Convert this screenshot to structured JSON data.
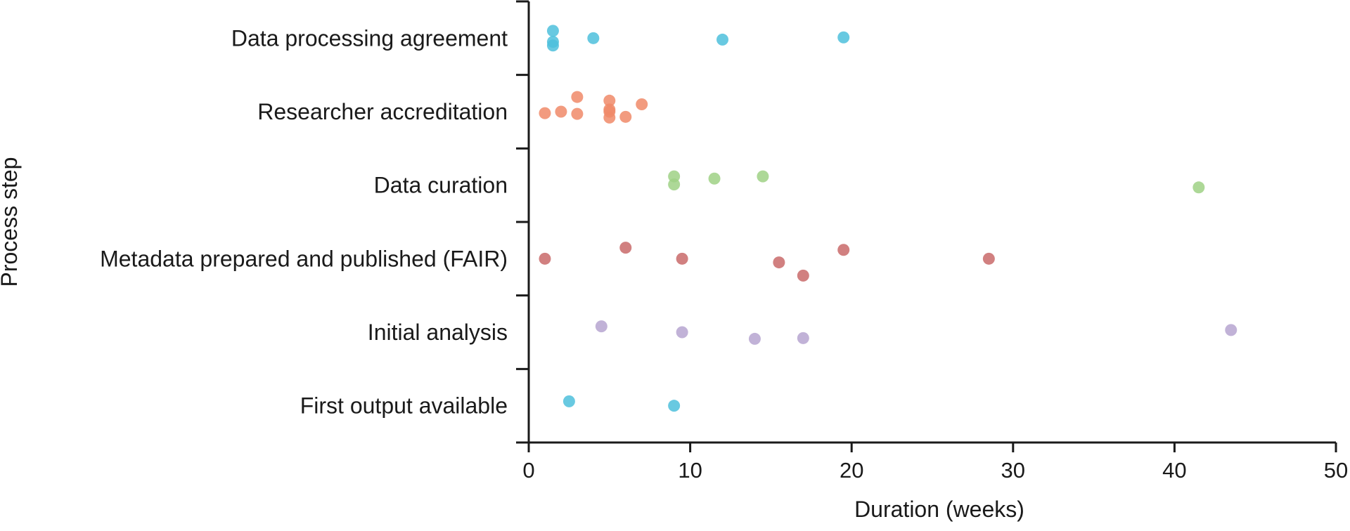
{
  "chart_data": {
    "type": "scatter",
    "title": "",
    "xlabel": "Duration (weeks)",
    "ylabel": "Process step",
    "xlim": [
      0,
      50
    ],
    "xticks": [
      0,
      10,
      20,
      30,
      40,
      50
    ],
    "xtick_labels": [
      "0",
      "10",
      "20",
      "30",
      "40",
      "50"
    ],
    "grid": false,
    "legend": "none",
    "categories": [
      "Data processing agreement",
      "Researcher accreditation",
      "Data curation",
      "Metadata prepared and published (FAIR)",
      "Initial analysis",
      "First output available"
    ],
    "series": [
      {
        "category": "Data processing agreement",
        "color": "#4dbfdc",
        "points": [
          {
            "x": 1.5,
            "jitter": -0.1
          },
          {
            "x": 1.5,
            "jitter": 0.05
          },
          {
            "x": 1.5,
            "jitter": 0.1
          },
          {
            "x": 4.0,
            "jitter": 0.0
          },
          {
            "x": 12.0,
            "jitter": 0.02
          },
          {
            "x": 19.5,
            "jitter": -0.01
          }
        ]
      },
      {
        "category": "Researcher accreditation",
        "color": "#f08a69",
        "points": [
          {
            "x": 1.0,
            "jitter": 0.02
          },
          {
            "x": 2.0,
            "jitter": 0.0
          },
          {
            "x": 3.0,
            "jitter": -0.2
          },
          {
            "x": 3.0,
            "jitter": 0.03
          },
          {
            "x": 5.0,
            "jitter": -0.15
          },
          {
            "x": 5.0,
            "jitter": -0.03
          },
          {
            "x": 5.0,
            "jitter": 0.0
          },
          {
            "x": 5.0,
            "jitter": 0.08
          },
          {
            "x": 6.0,
            "jitter": 0.07
          },
          {
            "x": 7.0,
            "jitter": -0.1
          }
        ]
      },
      {
        "category": "Data curation",
        "color": "#9fd185",
        "points": [
          {
            "x": 9.0,
            "jitter": -0.12
          },
          {
            "x": 9.0,
            "jitter": -0.01
          },
          {
            "x": 11.5,
            "jitter": -0.09
          },
          {
            "x": 14.5,
            "jitter": -0.12
          },
          {
            "x": 41.5,
            "jitter": 0.03
          }
        ]
      },
      {
        "category": "Metadata prepared and published (FAIR)",
        "color": "#c96a6a",
        "points": [
          {
            "x": 1.0,
            "jitter": 0.0
          },
          {
            "x": 6.0,
            "jitter": -0.15
          },
          {
            "x": 9.5,
            "jitter": 0.0
          },
          {
            "x": 15.5,
            "jitter": 0.05
          },
          {
            "x": 17.0,
            "jitter": 0.23
          },
          {
            "x": 19.5,
            "jitter": -0.12
          },
          {
            "x": 28.5,
            "jitter": 0.0
          }
        ]
      },
      {
        "category": "Initial analysis",
        "color": "#b6a4d0",
        "points": [
          {
            "x": 4.5,
            "jitter": -0.08
          },
          {
            "x": 9.5,
            "jitter": 0.0
          },
          {
            "x": 14.0,
            "jitter": 0.09
          },
          {
            "x": 17.0,
            "jitter": 0.08
          },
          {
            "x": 43.5,
            "jitter": -0.03
          }
        ]
      },
      {
        "category": "First output available",
        "color": "#4dbfdc",
        "points": [
          {
            "x": 2.5,
            "jitter": -0.06
          },
          {
            "x": 9.0,
            "jitter": 0.0
          }
        ]
      }
    ]
  }
}
